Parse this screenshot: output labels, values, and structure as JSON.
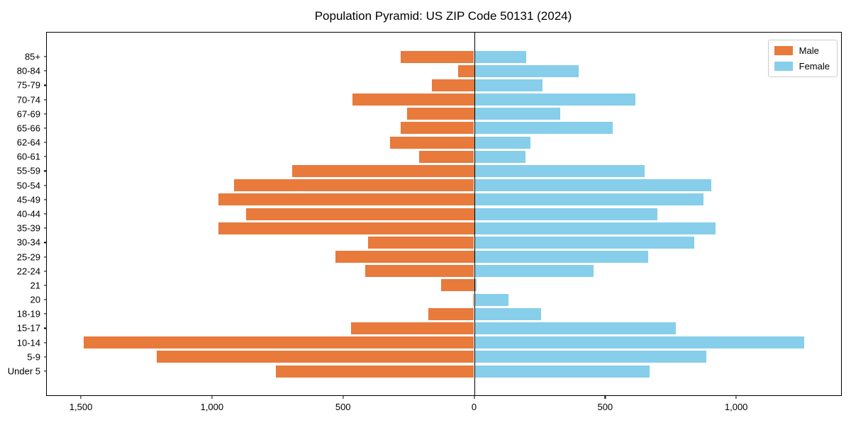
{
  "title": "Population Pyramid: US ZIP Code 50131 (2024)",
  "legend": {
    "male_label": "Male",
    "female_label": "Female"
  },
  "colors": {
    "male": "#e87a3c",
    "female": "#87ceeb",
    "spine": "#000000",
    "legend_border": "#cccccc",
    "background": "#ffffff"
  },
  "chart_data": {
    "type": "bar",
    "subtype": "population-pyramid",
    "orientation": "horizontal",
    "title": "Population Pyramid: US ZIP Code 50131 (2024)",
    "categories": [
      "85+",
      "80-84",
      "75-79",
      "70-74",
      "67-69",
      "65-66",
      "62-64",
      "60-61",
      "55-59",
      "50-54",
      "45-49",
      "40-44",
      "35-39",
      "30-34",
      "25-29",
      "22-24",
      "21",
      "20",
      "18-19",
      "15-17",
      "10-14",
      "5-9",
      "Under 5"
    ],
    "series": [
      {
        "name": "Male",
        "side": "left",
        "color": "#e87a3c",
        "values": [
          280,
          60,
          160,
          465,
          255,
          280,
          320,
          210,
          695,
          915,
          975,
          870,
          975,
          405,
          530,
          415,
          125,
          3,
          175,
          470,
          1490,
          1210,
          755
        ]
      },
      {
        "name": "Female",
        "side": "right",
        "color": "#87ceeb",
        "values": [
          200,
          400,
          260,
          615,
          330,
          530,
          215,
          195,
          650,
          905,
          875,
          700,
          920,
          840,
          665,
          455,
          10,
          130,
          255,
          770,
          1260,
          885,
          670
        ]
      }
    ],
    "xlim": [
      -1630,
      1400
    ],
    "x_ticks": [
      {
        "value": -1500,
        "label": "1,500"
      },
      {
        "value": -1000,
        "label": "1,000"
      },
      {
        "value": -500,
        "label": "500"
      },
      {
        "value": 0,
        "label": "0"
      },
      {
        "value": 500,
        "label": "500"
      },
      {
        "value": 1000,
        "label": "1,000"
      }
    ],
    "legend_position": "upper right",
    "grid": false,
    "zero_axis_line": true
  }
}
